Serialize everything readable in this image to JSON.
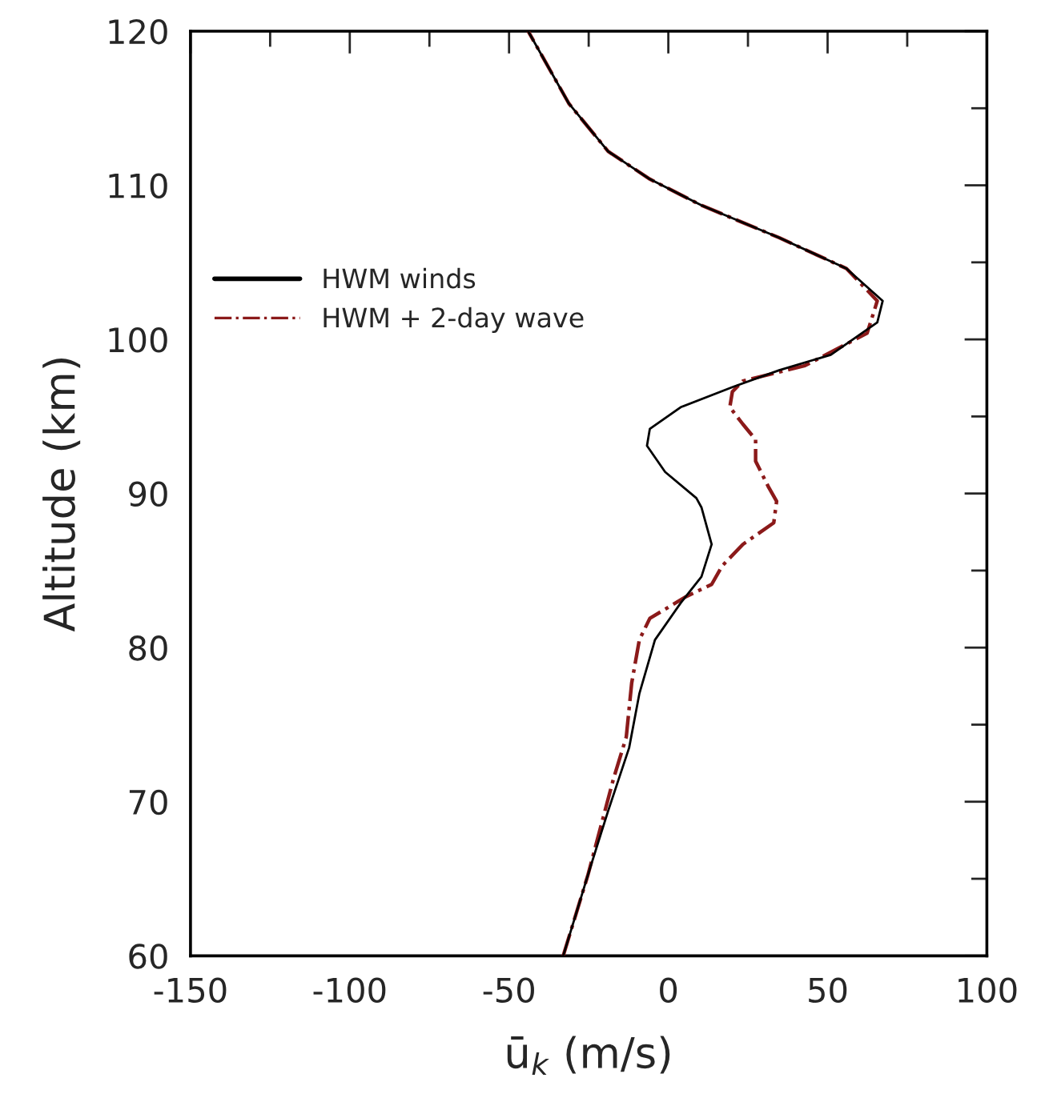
{
  "chart_data": {
    "type": "line",
    "xlabel": "ū$_{k}$ (m/s)",
    "ylabel": "Altitude (km)",
    "xlim": [
      -150,
      100
    ],
    "xticks": [
      -150,
      -100,
      -50,
      0,
      50,
      100
    ],
    "ylim": [
      60,
      120
    ],
    "yticks": [
      60,
      70,
      80,
      90,
      100,
      110,
      120
    ],
    "grid": false,
    "legend": "top left",
    "marker": "none",
    "series": [
      {
        "name": "HWM winds",
        "color": "#000000",
        "line_style": "solid",
        "x": [
          -33,
          -25.3,
          -18.9,
          -12.3,
          -9.1,
          -4.2,
          3.9,
          10.4,
          13.6,
          10.4,
          8.8,
          -1.0,
          -6.7,
          -5.8,
          3.9,
          20.1,
          34.8,
          51.0,
          65.6,
          67.3,
          55.9,
          34.8,
          10.4,
          -5.8,
          -18.9,
          -31.2,
          -44
        ],
        "values": [
          60,
          65.2,
          69.4,
          73.5,
          77.0,
          80.5,
          82.9,
          84.6,
          86.7,
          89.1,
          89.7,
          91.4,
          93.1,
          94.2,
          95.6,
          96.9,
          98.0,
          99.0,
          101.1,
          102.5,
          104.6,
          106.6,
          108.7,
          110.4,
          112.2,
          115.3,
          120
        ]
      },
      {
        "name": "HWM + 2-day wave",
        "color": "#8b1a1a",
        "line_style": "dashdot",
        "x": [
          -33,
          -25.3,
          -17.2,
          -13.2,
          -11.5,
          -9.1,
          -5.8,
          5.5,
          13.6,
          16.9,
          23.4,
          33.1,
          34.0,
          31.5,
          27.4,
          27.4,
          23.4,
          19.3,
          20.1,
          23.4,
          42.9,
          62.4,
          65.6,
          55.9,
          34.8,
          10.4,
          -5.8,
          -18.9,
          -31.2,
          -44
        ],
        "values": [
          60,
          65.2,
          71.5,
          74.2,
          77.7,
          80.5,
          81.9,
          83.3,
          84.1,
          85.3,
          86.7,
          88.1,
          89.5,
          90.4,
          92.1,
          93.5,
          94.5,
          95.6,
          96.6,
          97.3,
          98.3,
          100.4,
          102.5,
          104.6,
          106.6,
          108.7,
          110.4,
          112.2,
          115.3,
          120
        ]
      }
    ]
  }
}
